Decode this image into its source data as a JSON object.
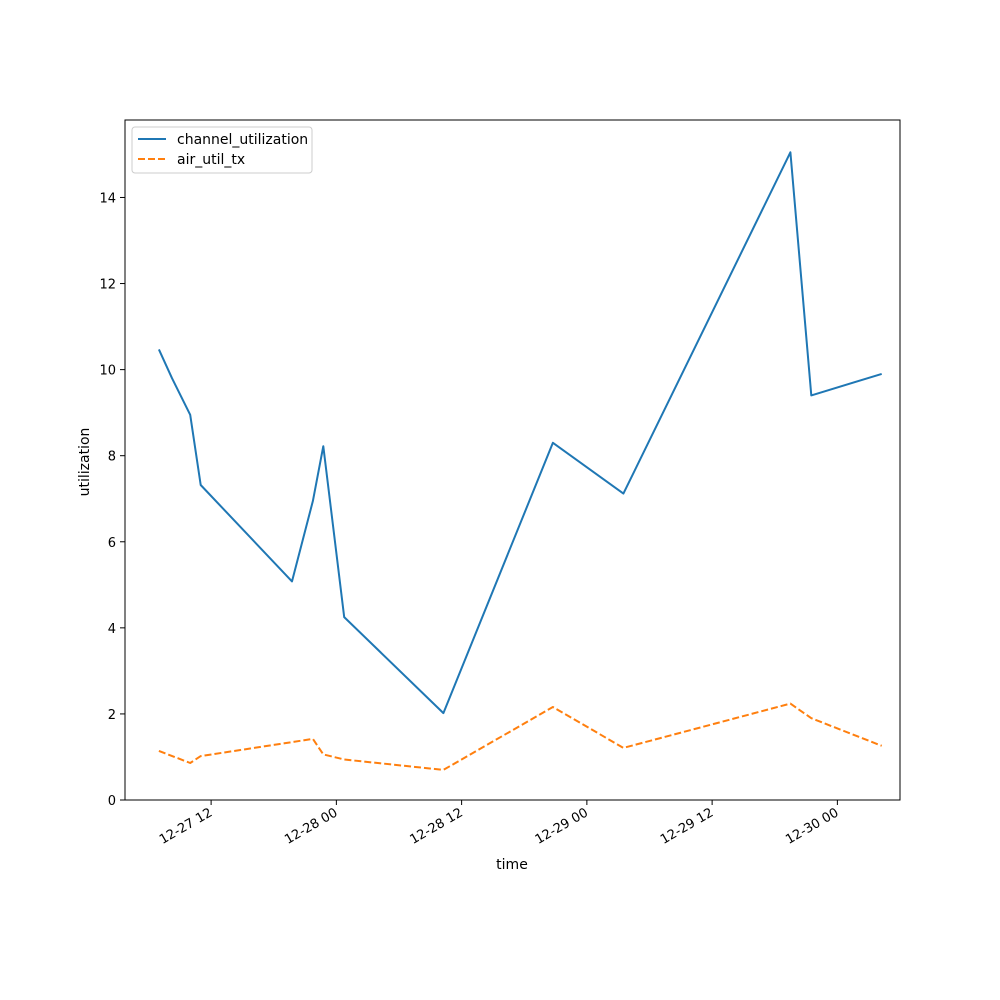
{
  "chart_data": {
    "type": "line",
    "title": "",
    "xlabel": "time",
    "ylabel": "utilization",
    "x_axis_kind": "datetime",
    "xlim": [
      "2018-12-27T03:45",
      "2018-12-30T06:00"
    ],
    "ylim": [
      0,
      15.8
    ],
    "x_ticks": [
      {
        "value": "2018-12-27T12:00",
        "label": "12-27 12"
      },
      {
        "value": "2018-12-28T00:00",
        "label": "12-28 00"
      },
      {
        "value": "2018-12-28T12:00",
        "label": "12-28 12"
      },
      {
        "value": "2018-12-29T00:00",
        "label": "12-29 00"
      },
      {
        "value": "2018-12-29T12:00",
        "label": "12-29 12"
      },
      {
        "value": "2018-12-30T00:00",
        "label": "12-30 00"
      }
    ],
    "y_ticks": [
      {
        "value": 0,
        "label": "0"
      },
      {
        "value": 2,
        "label": "2"
      },
      {
        "value": 4,
        "label": "4"
      },
      {
        "value": 6,
        "label": "6"
      },
      {
        "value": 8,
        "label": "8"
      },
      {
        "value": 10,
        "label": "10"
      },
      {
        "value": 12,
        "label": "12"
      },
      {
        "value": 14,
        "label": "14"
      }
    ],
    "grid": false,
    "legend_position": "top-left",
    "series": [
      {
        "name": "channel_utilization",
        "color": "#1f77b4",
        "line_style": "solid",
        "points": [
          {
            "x": "2018-12-27T07:00",
            "y": 10.47
          },
          {
            "x": "2018-12-27T08:15",
            "y": 9.8
          },
          {
            "x": "2018-12-27T10:00",
            "y": 8.95
          },
          {
            "x": "2018-12-27T11:00",
            "y": 7.32
          },
          {
            "x": "2018-12-27T19:45",
            "y": 5.08
          },
          {
            "x": "2018-12-27T21:45",
            "y": 6.95
          },
          {
            "x": "2018-12-27T22:45",
            "y": 8.22
          },
          {
            "x": "2018-12-28T00:45",
            "y": 4.25
          },
          {
            "x": "2018-12-28T10:15",
            "y": 2.02
          },
          {
            "x": "2018-12-28T20:45",
            "y": 8.3
          },
          {
            "x": "2018-12-29T03:30",
            "y": 7.12
          },
          {
            "x": "2018-12-29T19:30",
            "y": 15.05
          },
          {
            "x": "2018-12-29T21:30",
            "y": 9.4
          },
          {
            "x": "2018-12-30T04:15",
            "y": 9.9
          }
        ]
      },
      {
        "name": "air_util_tx",
        "color": "#ff7f0e",
        "line_style": "dashed",
        "points": [
          {
            "x": "2018-12-27T07:00",
            "y": 1.14
          },
          {
            "x": "2018-12-27T10:00",
            "y": 0.86
          },
          {
            "x": "2018-12-27T11:00",
            "y": 1.02
          },
          {
            "x": "2018-12-27T21:45",
            "y": 1.42
          },
          {
            "x": "2018-12-27T22:45",
            "y": 1.06
          },
          {
            "x": "2018-12-28T00:45",
            "y": 0.94
          },
          {
            "x": "2018-12-28T10:15",
            "y": 0.7
          },
          {
            "x": "2018-12-28T20:45",
            "y": 2.16
          },
          {
            "x": "2018-12-29T03:30",
            "y": 1.21
          },
          {
            "x": "2018-12-29T19:30",
            "y": 2.24
          },
          {
            "x": "2018-12-29T21:30",
            "y": 1.9
          },
          {
            "x": "2018-12-30T04:15",
            "y": 1.26
          }
        ]
      }
    ]
  }
}
